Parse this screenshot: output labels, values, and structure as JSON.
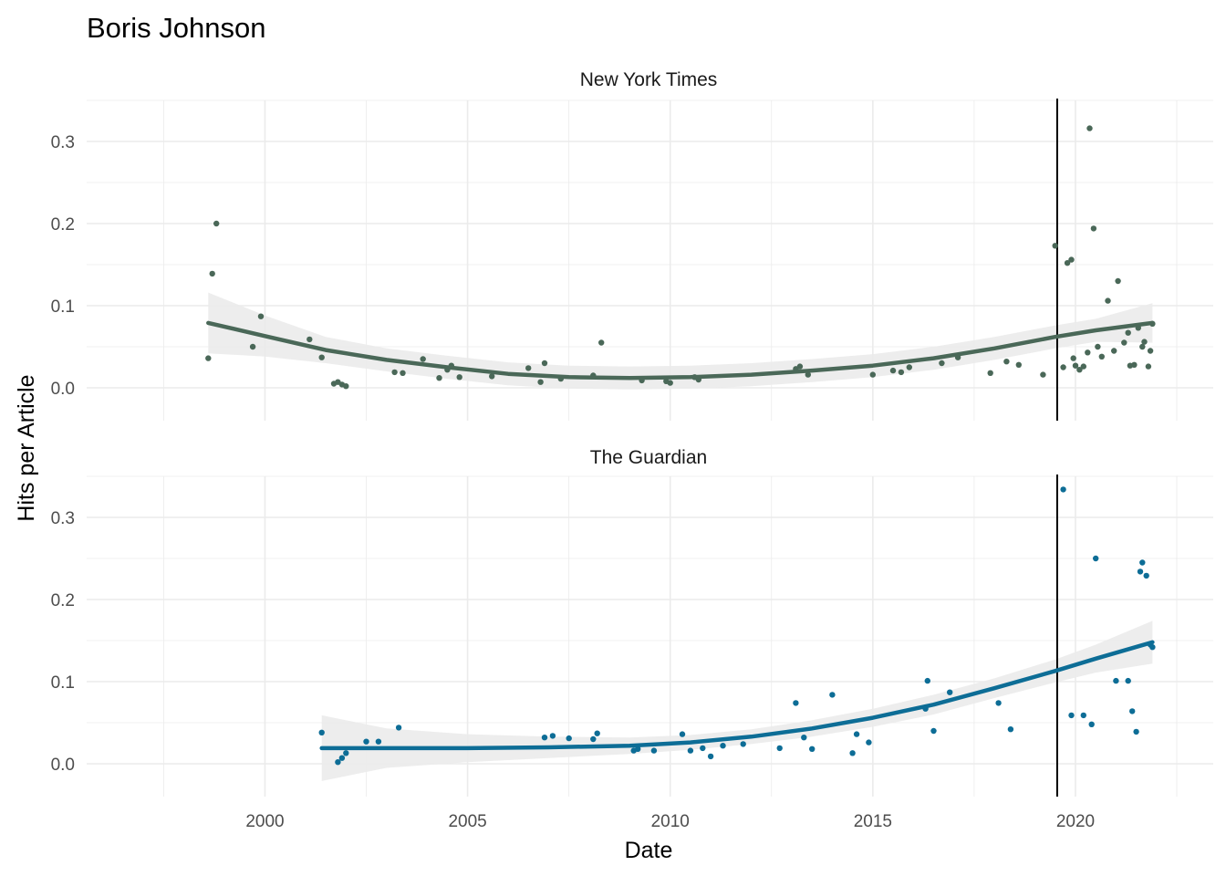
{
  "chart_data": {
    "type": "scatter",
    "title": "Boris Johnson",
    "xlabel": "Date",
    "ylabel": "Hits per Article",
    "xlim": [
      1995.6,
      2023.4
    ],
    "x_ticks": [
      2000,
      2005,
      2010,
      2015,
      2020
    ],
    "ylim": [
      -0.04,
      0.35
    ],
    "y_ticks": [
      0.0,
      0.1,
      0.2,
      0.3
    ],
    "y_tick_labels": [
      "0.0",
      "0.1",
      "0.2",
      "0.3"
    ],
    "grid": true,
    "vline_x": 2019.55,
    "colors": {
      "nyt": "#4a6858",
      "guardian": "#0d6d96",
      "band": "#ebebeb",
      "grid": "#ebebeb",
      "vline": "#000000"
    },
    "panels": [
      {
        "name": "New York Times",
        "points": [
          [
            1998.6,
            0.036
          ],
          [
            1998.7,
            0.139
          ],
          [
            1998.8,
            0.2
          ],
          [
            1999.7,
            0.05
          ],
          [
            1999.9,
            0.087
          ],
          [
            2001.1,
            0.059
          ],
          [
            2001.4,
            0.037
          ],
          [
            2001.7,
            0.005
          ],
          [
            2001.8,
            0.007
          ],
          [
            2001.9,
            0.004
          ],
          [
            2002.0,
            0.002
          ],
          [
            2003.2,
            0.019
          ],
          [
            2003.4,
            0.018
          ],
          [
            2003.9,
            0.035
          ],
          [
            2004.3,
            0.012
          ],
          [
            2004.5,
            0.022
          ],
          [
            2004.6,
            0.027
          ],
          [
            2004.8,
            0.013
          ],
          [
            2005.6,
            0.014
          ],
          [
            2006.5,
            0.024
          ],
          [
            2006.8,
            0.007
          ],
          [
            2006.9,
            0.03
          ],
          [
            2007.3,
            0.011
          ],
          [
            2008.1,
            0.015
          ],
          [
            2008.3,
            0.055
          ],
          [
            2009.3,
            0.009
          ],
          [
            2009.9,
            0.008
          ],
          [
            2010.0,
            0.006
          ],
          [
            2010.6,
            0.013
          ],
          [
            2010.7,
            0.01
          ],
          [
            2013.1,
            0.023
          ],
          [
            2013.2,
            0.026
          ],
          [
            2013.4,
            0.016
          ],
          [
            2015.0,
            0.016
          ],
          [
            2015.5,
            0.021
          ],
          [
            2015.7,
            0.019
          ],
          [
            2015.9,
            0.025
          ],
          [
            2016.7,
            0.03
          ],
          [
            2017.1,
            0.037
          ],
          [
            2017.9,
            0.018
          ],
          [
            2018.3,
            0.032
          ],
          [
            2018.6,
            0.028
          ],
          [
            2019.2,
            0.016
          ],
          [
            2019.5,
            0.173
          ],
          [
            2019.7,
            0.025
          ],
          [
            2019.8,
            0.152
          ],
          [
            2019.9,
            0.156
          ],
          [
            2019.95,
            0.036
          ],
          [
            2020.0,
            0.027
          ],
          [
            2020.1,
            0.022
          ],
          [
            2020.2,
            0.026
          ],
          [
            2020.3,
            0.043
          ],
          [
            2020.35,
            0.316
          ],
          [
            2020.45,
            0.194
          ],
          [
            2020.55,
            0.05
          ],
          [
            2020.65,
            0.038
          ],
          [
            2020.8,
            0.106
          ],
          [
            2020.95,
            0.045
          ],
          [
            2021.05,
            0.13
          ],
          [
            2021.2,
            0.055
          ],
          [
            2021.3,
            0.067
          ],
          [
            2021.35,
            0.027
          ],
          [
            2021.45,
            0.028
          ],
          [
            2021.55,
            0.073
          ],
          [
            2021.65,
            0.05
          ],
          [
            2021.7,
            0.056
          ],
          [
            2021.8,
            0.026
          ],
          [
            2021.85,
            0.045
          ],
          [
            2021.9,
            0.078
          ]
        ],
        "smooth": [
          [
            1998.6,
            0.079
          ],
          [
            2000.0,
            0.063
          ],
          [
            2001.5,
            0.046
          ],
          [
            2003.0,
            0.034
          ],
          [
            2004.5,
            0.025
          ],
          [
            2006.0,
            0.017
          ],
          [
            2007.5,
            0.013
          ],
          [
            2009.0,
            0.012
          ],
          [
            2010.5,
            0.013
          ],
          [
            2012.0,
            0.016
          ],
          [
            2013.5,
            0.021
          ],
          [
            2015.0,
            0.027
          ],
          [
            2016.5,
            0.036
          ],
          [
            2018.0,
            0.048
          ],
          [
            2019.5,
            0.062
          ],
          [
            2020.5,
            0.07
          ],
          [
            2021.9,
            0.079
          ]
        ],
        "band_upper": [
          [
            1998.6,
            0.116
          ],
          [
            2000.0,
            0.088
          ],
          [
            2001.5,
            0.062
          ],
          [
            2003.0,
            0.048
          ],
          [
            2004.5,
            0.039
          ],
          [
            2006.0,
            0.031
          ],
          [
            2007.5,
            0.027
          ],
          [
            2009.0,
            0.026
          ],
          [
            2010.5,
            0.027
          ],
          [
            2012.0,
            0.03
          ],
          [
            2013.5,
            0.035
          ],
          [
            2015.0,
            0.041
          ],
          [
            2016.5,
            0.05
          ],
          [
            2018.0,
            0.062
          ],
          [
            2019.5,
            0.076
          ],
          [
            2020.5,
            0.084
          ],
          [
            2021.9,
            0.103
          ]
        ],
        "band_lower": [
          [
            1998.6,
            0.042
          ],
          [
            2000.0,
            0.038
          ],
          [
            2001.5,
            0.03
          ],
          [
            2003.0,
            0.02
          ],
          [
            2004.5,
            0.011
          ],
          [
            2006.0,
            0.003
          ],
          [
            2007.5,
            -0.001
          ],
          [
            2009.0,
            -0.002
          ],
          [
            2010.5,
            -0.001
          ],
          [
            2012.0,
            0.002
          ],
          [
            2013.5,
            0.007
          ],
          [
            2015.0,
            0.013
          ],
          [
            2016.5,
            0.022
          ],
          [
            2018.0,
            0.034
          ],
          [
            2019.5,
            0.048
          ],
          [
            2020.5,
            0.056
          ],
          [
            2021.9,
            0.055
          ]
        ]
      },
      {
        "name": "The Guardian",
        "points": [
          [
            2001.4,
            0.038
          ],
          [
            2001.8,
            0.002
          ],
          [
            2001.9,
            0.007
          ],
          [
            2002.0,
            0.013
          ],
          [
            2002.5,
            0.027
          ],
          [
            2002.8,
            0.027
          ],
          [
            2003.3,
            0.044
          ],
          [
            2006.9,
            0.032
          ],
          [
            2007.1,
            0.034
          ],
          [
            2007.5,
            0.031
          ],
          [
            2008.1,
            0.03
          ],
          [
            2008.2,
            0.037
          ],
          [
            2009.1,
            0.016
          ],
          [
            2009.2,
            0.018
          ],
          [
            2009.6,
            0.016
          ],
          [
            2010.3,
            0.036
          ],
          [
            2010.5,
            0.016
          ],
          [
            2010.8,
            0.019
          ],
          [
            2011.0,
            0.009
          ],
          [
            2011.3,
            0.022
          ],
          [
            2011.8,
            0.024
          ],
          [
            2012.7,
            0.019
          ],
          [
            2013.1,
            0.074
          ],
          [
            2013.3,
            0.032
          ],
          [
            2013.5,
            0.018
          ],
          [
            2014.0,
            0.084
          ],
          [
            2014.5,
            0.013
          ],
          [
            2014.6,
            0.036
          ],
          [
            2014.9,
            0.026
          ],
          [
            2016.3,
            0.067
          ],
          [
            2016.35,
            0.101
          ],
          [
            2016.5,
            0.04
          ],
          [
            2016.9,
            0.087
          ],
          [
            2018.1,
            0.074
          ],
          [
            2018.4,
            0.042
          ],
          [
            2019.7,
            0.334
          ],
          [
            2019.9,
            0.059
          ],
          [
            2020.2,
            0.059
          ],
          [
            2020.4,
            0.048
          ],
          [
            2020.5,
            0.25
          ],
          [
            2021.0,
            0.101
          ],
          [
            2021.3,
            0.101
          ],
          [
            2021.4,
            0.064
          ],
          [
            2021.5,
            0.039
          ],
          [
            2021.6,
            0.234
          ],
          [
            2021.65,
            0.245
          ],
          [
            2021.75,
            0.229
          ],
          [
            2021.85,
            0.145
          ],
          [
            2021.9,
            0.142
          ]
        ],
        "smooth": [
          [
            2001.4,
            0.019
          ],
          [
            2003.0,
            0.019
          ],
          [
            2005.0,
            0.019
          ],
          [
            2007.0,
            0.02
          ],
          [
            2009.0,
            0.022
          ],
          [
            2010.5,
            0.026
          ],
          [
            2012.0,
            0.033
          ],
          [
            2013.5,
            0.043
          ],
          [
            2015.0,
            0.056
          ],
          [
            2016.5,
            0.072
          ],
          [
            2018.0,
            0.092
          ],
          [
            2019.5,
            0.113
          ],
          [
            2020.5,
            0.128
          ],
          [
            2021.9,
            0.148
          ]
        ],
        "band_upper": [
          [
            2001.4,
            0.059
          ],
          [
            2003.0,
            0.043
          ],
          [
            2005.0,
            0.036
          ],
          [
            2007.0,
            0.033
          ],
          [
            2009.0,
            0.032
          ],
          [
            2010.5,
            0.035
          ],
          [
            2012.0,
            0.042
          ],
          [
            2013.5,
            0.053
          ],
          [
            2015.0,
            0.067
          ],
          [
            2016.5,
            0.084
          ],
          [
            2018.0,
            0.104
          ],
          [
            2019.5,
            0.127
          ],
          [
            2020.5,
            0.145
          ],
          [
            2021.9,
            0.174
          ]
        ],
        "band_lower": [
          [
            2001.4,
            -0.021
          ],
          [
            2003.0,
            -0.005
          ],
          [
            2005.0,
            0.002
          ],
          [
            2007.0,
            0.007
          ],
          [
            2009.0,
            0.012
          ],
          [
            2010.5,
            0.017
          ],
          [
            2012.0,
            0.024
          ],
          [
            2013.5,
            0.033
          ],
          [
            2015.0,
            0.045
          ],
          [
            2016.5,
            0.06
          ],
          [
            2018.0,
            0.08
          ],
          [
            2019.5,
            0.099
          ],
          [
            2020.5,
            0.111
          ],
          [
            2021.9,
            0.122
          ]
        ]
      }
    ]
  }
}
